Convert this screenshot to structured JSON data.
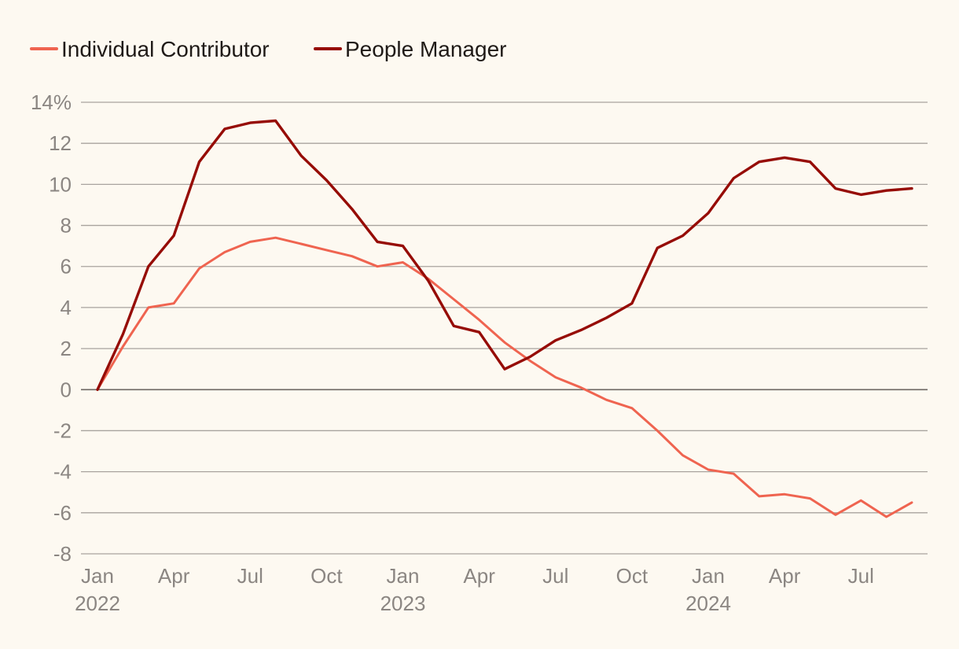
{
  "chart_data": {
    "type": "line",
    "title": "",
    "xlabel": "",
    "ylabel": "",
    "ylim": [
      -8,
      14
    ],
    "yticks": [
      14,
      12,
      10,
      8,
      6,
      4,
      2,
      0,
      -2,
      -4,
      -6,
      -8
    ],
    "ytick_labels": [
      "14%",
      "12",
      "10",
      "8",
      "6",
      "4",
      "2",
      "0",
      "-2",
      "-4",
      "-6",
      "-8"
    ],
    "x_tick_labels": [
      {
        "month_index": 0,
        "month": "Jan",
        "year": "2022"
      },
      {
        "month_index": 3,
        "month": "Apr",
        "year": ""
      },
      {
        "month_index": 6,
        "month": "Jul",
        "year": ""
      },
      {
        "month_index": 9,
        "month": "Oct",
        "year": ""
      },
      {
        "month_index": 12,
        "month": "Jan",
        "year": "2023"
      },
      {
        "month_index": 15,
        "month": "Apr",
        "year": ""
      },
      {
        "month_index": 18,
        "month": "Jul",
        "year": ""
      },
      {
        "month_index": 21,
        "month": "Oct",
        "year": ""
      },
      {
        "month_index": 24,
        "month": "Jan",
        "year": "2024"
      },
      {
        "month_index": 27,
        "month": "Apr",
        "year": ""
      },
      {
        "month_index": 30,
        "month": "Jul",
        "year": ""
      }
    ],
    "x_range": [
      0,
      32
    ],
    "legend_position": "top-left",
    "series": [
      {
        "name": "Individual Contributor",
        "color": "#ef6450",
        "values": [
          0,
          2.1,
          4.0,
          4.2,
          5.9,
          6.7,
          7.2,
          7.4,
          7.1,
          6.8,
          6.5,
          6.0,
          6.2,
          5.4,
          4.4,
          3.4,
          2.3,
          1.4,
          0.6,
          0.1,
          -0.5,
          -0.9,
          -2.0,
          -3.2,
          -3.9,
          -4.1,
          -5.2,
          -5.1,
          -5.3,
          -6.1,
          -5.4,
          -6.2,
          -5.5
        ]
      },
      {
        "name": "People Manager",
        "color": "#960c06",
        "values": [
          0,
          2.7,
          6.0,
          7.5,
          11.1,
          12.7,
          13.0,
          13.1,
          11.4,
          10.2,
          8.8,
          7.2,
          7.0,
          5.3,
          3.1,
          2.8,
          1.0,
          1.6,
          2.4,
          2.9,
          3.5,
          4.2,
          6.9,
          7.5,
          8.6,
          10.3,
          11.1,
          11.3,
          11.1,
          9.8,
          9.5,
          9.7,
          9.8
        ]
      }
    ]
  }
}
